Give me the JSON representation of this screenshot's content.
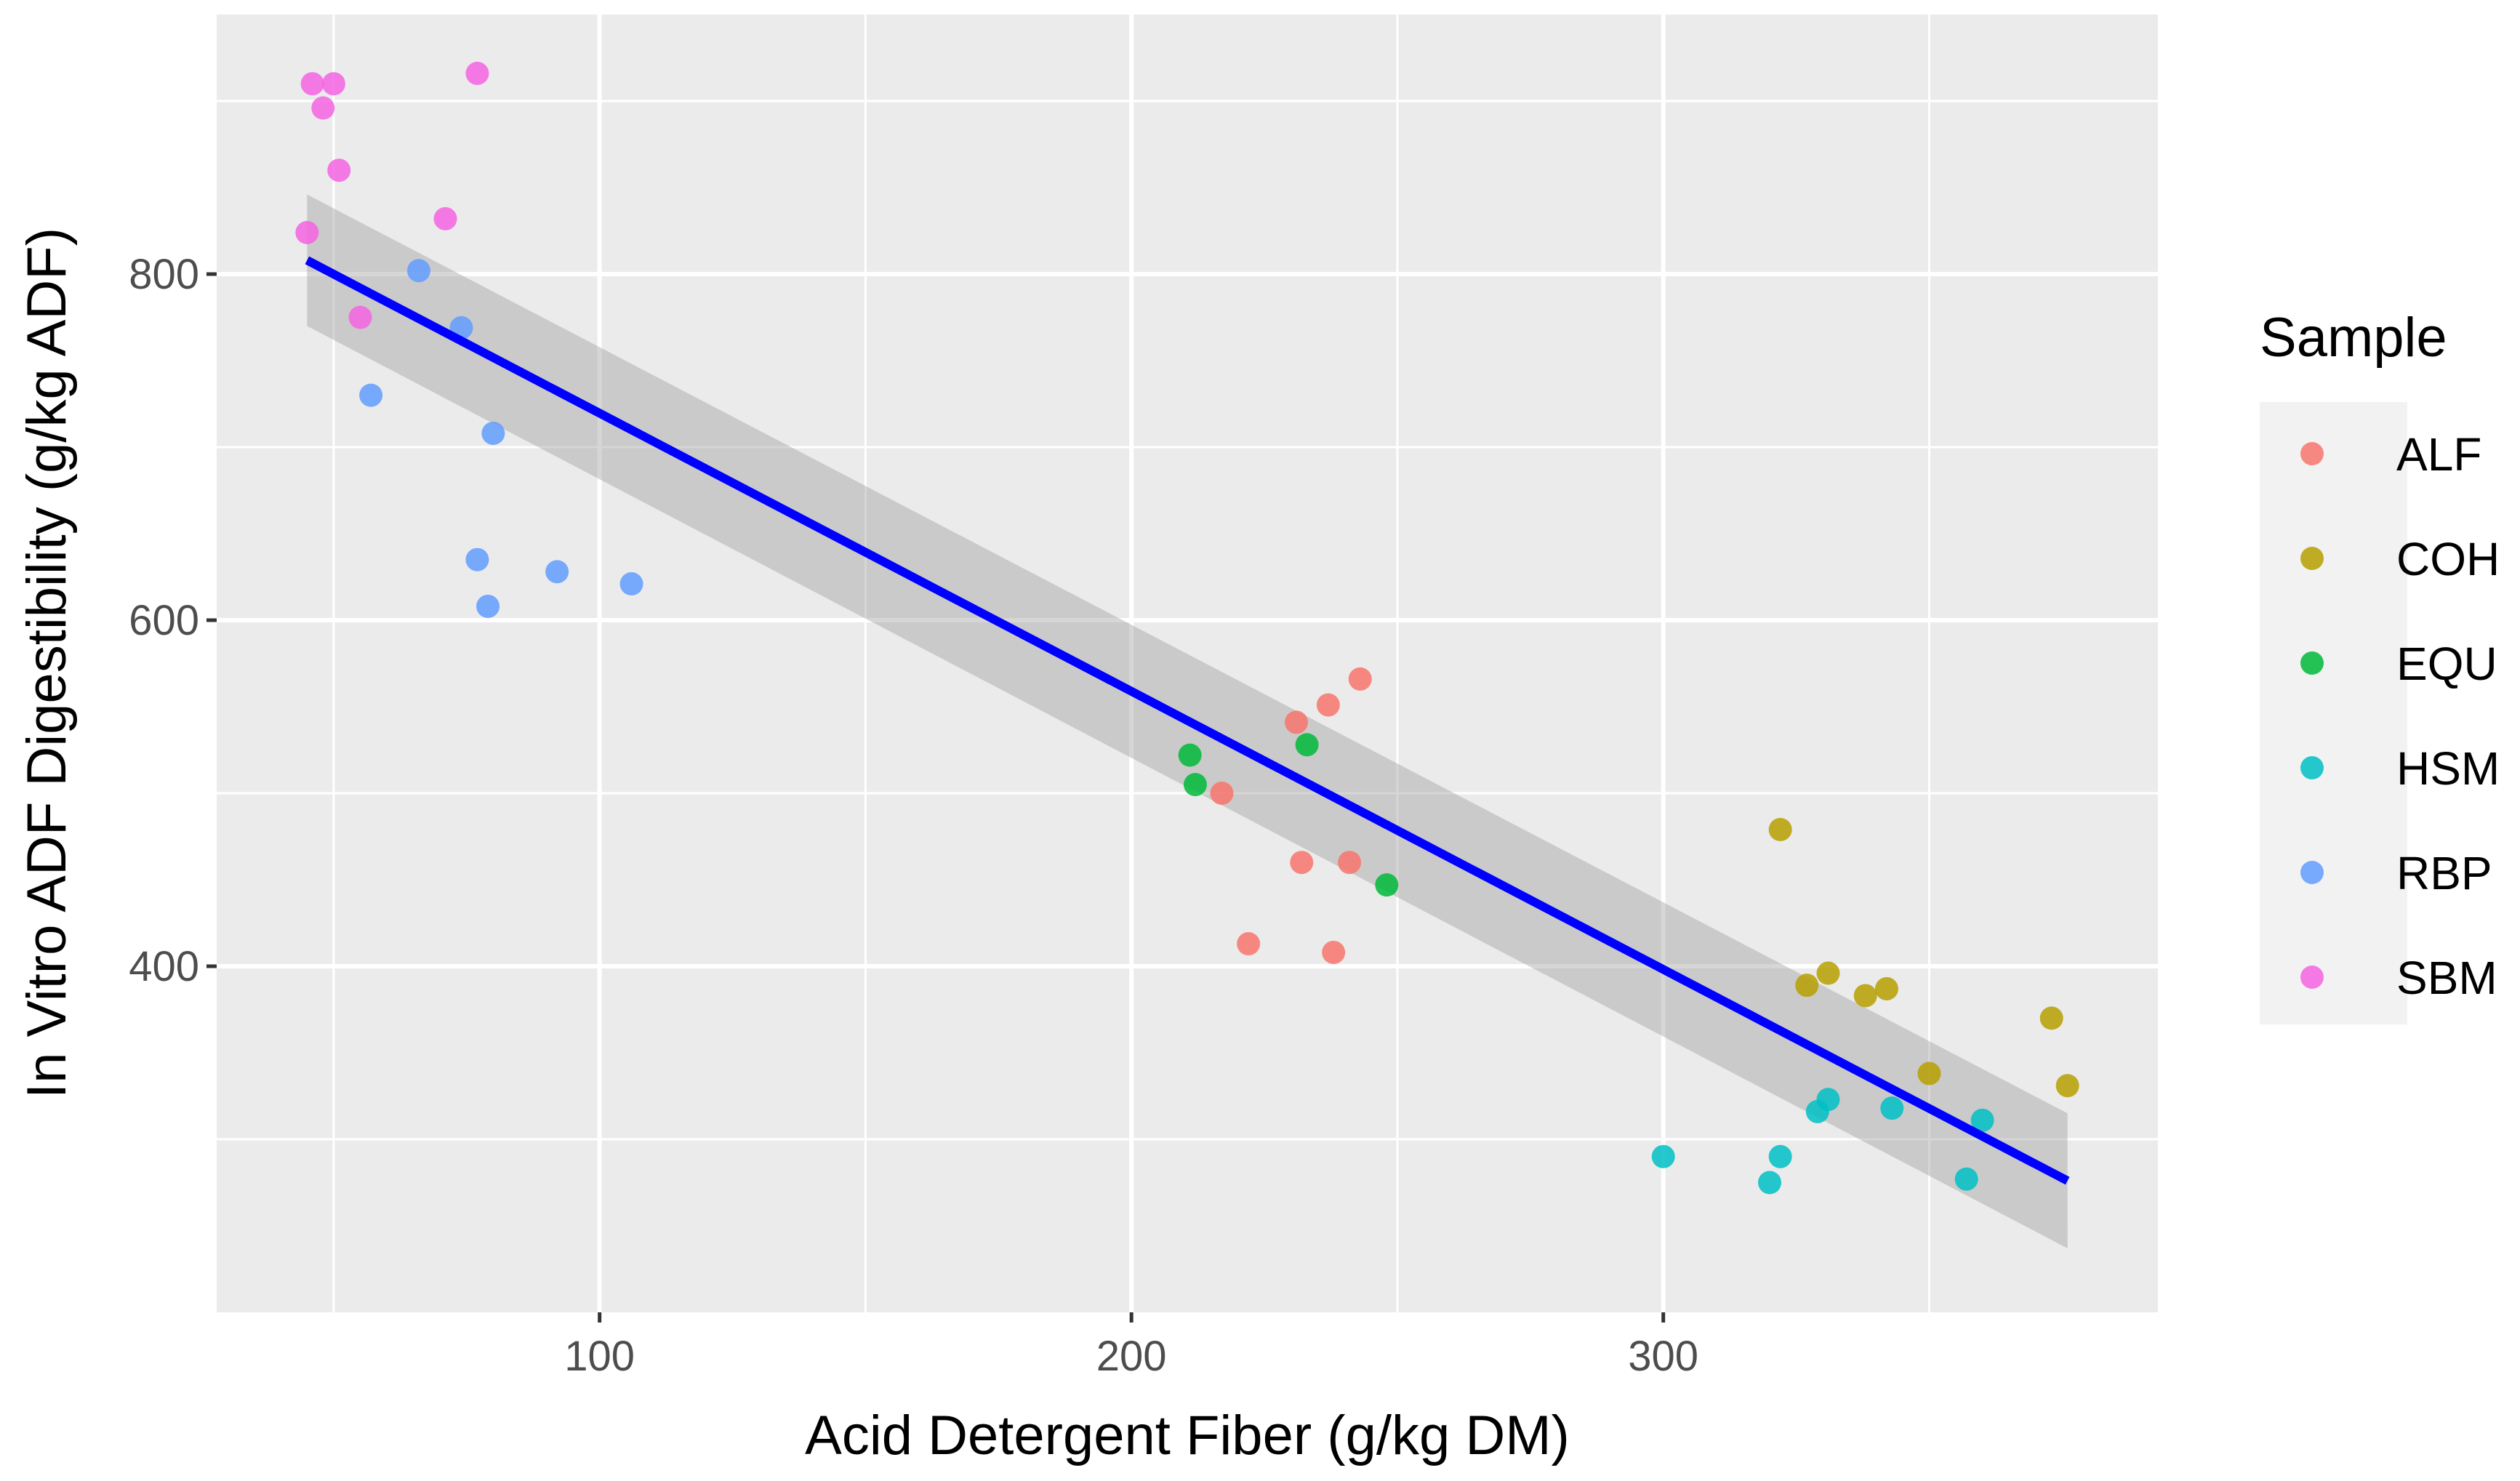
{
  "chart_data": {
    "type": "scatter",
    "title": "",
    "xlabel": "Acid Detergent Fiber (g/kg DM)",
    "ylabel": "In Vitro ADF Digestibility (g/kg ADF)",
    "xlim": [
      28,
      393
    ],
    "ylim": [
      200,
      950
    ],
    "x_ticks": [
      100,
      200,
      300
    ],
    "x_minor": [
      50,
      150,
      250,
      350
    ],
    "y_ticks": [
      400,
      600,
      800
    ],
    "y_minor": [
      300,
      500,
      700,
      900
    ],
    "x_tick_labels": [
      "100",
      "200",
      "300"
    ],
    "y_tick_labels": [
      "400",
      "600",
      "800"
    ],
    "grid": true,
    "legend": {
      "title": "Sample",
      "position": "right"
    },
    "series": [
      {
        "name": "ALF",
        "color": "#F8766D",
        "points": [
          [
            231,
            541
          ],
          [
            237,
            551
          ],
          [
            243,
            566
          ],
          [
            217,
            500
          ],
          [
            232,
            460
          ],
          [
            241,
            460
          ],
          [
            222,
            413
          ],
          [
            238,
            408
          ]
        ]
      },
      {
        "name": "COH",
        "color": "#B79F00",
        "points": [
          [
            322,
            479
          ],
          [
            327,
            389
          ],
          [
            331,
            396
          ],
          [
            338,
            383
          ],
          [
            342,
            387
          ],
          [
            350,
            338
          ],
          [
            373,
            370
          ],
          [
            376,
            331
          ]
        ]
      },
      {
        "name": "EQU",
        "color": "#00BA38",
        "points": [
          [
            211,
            522
          ],
          [
            212,
            505
          ],
          [
            233,
            528
          ],
          [
            248,
            447
          ]
        ]
      },
      {
        "name": "HSM",
        "color": "#00BFC4",
        "points": [
          [
            300,
            290
          ],
          [
            320,
            275
          ],
          [
            322,
            290
          ],
          [
            329,
            316
          ],
          [
            331,
            323
          ],
          [
            343,
            318
          ],
          [
            357,
            277
          ],
          [
            360,
            311
          ]
        ]
      },
      {
        "name": "RBP",
        "color": "#619CFF",
        "points": [
          [
            66,
            802
          ],
          [
            74,
            769
          ],
          [
            57,
            730
          ],
          [
            80,
            708
          ],
          [
            77,
            635
          ],
          [
            92,
            628
          ],
          [
            106,
            621
          ],
          [
            79,
            608
          ]
        ]
      },
      {
        "name": "SBM",
        "color": "#F564E3",
        "points": [
          [
            46,
            910
          ],
          [
            50,
            910
          ],
          [
            48,
            896
          ],
          [
            77,
            916
          ],
          [
            51,
            860
          ],
          [
            71,
            832
          ],
          [
            45,
            824
          ],
          [
            55,
            775
          ]
        ]
      }
    ],
    "regression": {
      "color": "#0000FF",
      "x": [
        45,
        376
      ],
      "y": [
        808,
        276
      ],
      "ci_lower": [
        770,
        237
      ],
      "ci_upper": [
        846,
        315
      ]
    }
  }
}
